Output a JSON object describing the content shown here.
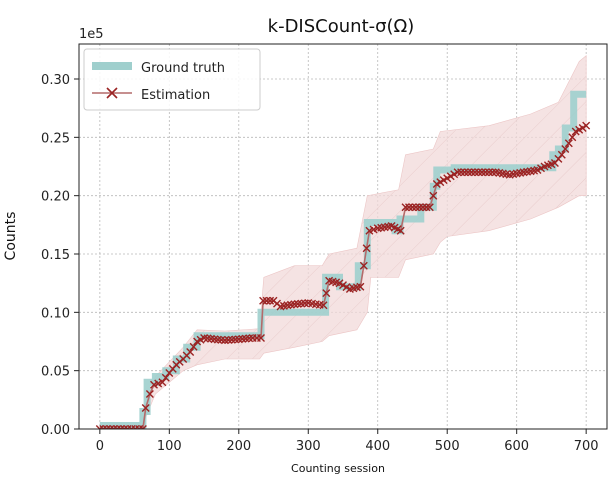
{
  "chart_data": {
    "type": "line",
    "title": "k-DISCount-σ(Ω)",
    "xlabel": "Counting session",
    "ylabel": "Counts",
    "y_multiplier_label": "1e5",
    "xlim": [
      -30,
      730
    ],
    "ylim": [
      0,
      0.33
    ],
    "x_ticks": [
      0,
      100,
      200,
      300,
      400,
      500,
      600,
      700
    ],
    "y_ticks": [
      0.0,
      0.05,
      0.1,
      0.15,
      0.2,
      0.25,
      0.3
    ],
    "y_tick_labels": [
      "0.00",
      "0.05",
      "0.10",
      "0.15",
      "0.20",
      "0.25",
      "0.30"
    ],
    "grid": true,
    "legend_position": "top-left",
    "series": [
      {
        "name": "Ground truth",
        "style": "step",
        "color": "#9fcfcd",
        "points": [
          [
            0,
            0.003
          ],
          [
            62,
            0.003
          ],
          [
            62,
            0.015
          ],
          [
            68,
            0.015
          ],
          [
            68,
            0.04
          ],
          [
            80,
            0.04
          ],
          [
            80,
            0.045
          ],
          [
            95,
            0.045
          ],
          [
            95,
            0.05
          ],
          [
            110,
            0.05
          ],
          [
            110,
            0.06
          ],
          [
            125,
            0.06
          ],
          [
            125,
            0.07
          ],
          [
            140,
            0.07
          ],
          [
            140,
            0.08
          ],
          [
            232,
            0.08
          ],
          [
            232,
            0.1
          ],
          [
            325,
            0.1
          ],
          [
            325,
            0.13
          ],
          [
            345,
            0.13
          ],
          [
            345,
            0.122
          ],
          [
            372,
            0.122
          ],
          [
            372,
            0.14
          ],
          [
            385,
            0.14
          ],
          [
            385,
            0.177
          ],
          [
            425,
            0.177
          ],
          [
            425,
            0.17
          ],
          [
            432,
            0.17
          ],
          [
            432,
            0.18
          ],
          [
            462,
            0.18
          ],
          [
            462,
            0.19
          ],
          [
            480,
            0.19
          ],
          [
            480,
            0.208
          ],
          [
            485,
            0.208
          ],
          [
            485,
            0.222
          ],
          [
            510,
            0.222
          ],
          [
            510,
            0.224
          ],
          [
            652,
            0.224
          ],
          [
            652,
            0.235
          ],
          [
            660,
            0.235
          ],
          [
            660,
            0.24
          ],
          [
            670,
            0.24
          ],
          [
            670,
            0.258
          ],
          [
            682,
            0.258
          ],
          [
            682,
            0.287
          ],
          [
            700,
            0.287
          ]
        ]
      },
      {
        "name": "Estimation",
        "style": "line-x-markers",
        "color": "#9b2323",
        "points": [
          [
            0,
            0.0
          ],
          [
            20,
            0.0
          ],
          [
            40,
            0.0
          ],
          [
            62,
            0.0
          ],
          [
            66,
            0.018
          ],
          [
            72,
            0.03
          ],
          [
            78,
            0.038
          ],
          [
            90,
            0.04
          ],
          [
            100,
            0.048
          ],
          [
            110,
            0.055
          ],
          [
            120,
            0.06
          ],
          [
            130,
            0.066
          ],
          [
            140,
            0.075
          ],
          [
            150,
            0.078
          ],
          [
            165,
            0.077
          ],
          [
            180,
            0.076
          ],
          [
            200,
            0.077
          ],
          [
            220,
            0.078
          ],
          [
            232,
            0.078
          ],
          [
            235,
            0.11
          ],
          [
            250,
            0.11
          ],
          [
            260,
            0.105
          ],
          [
            280,
            0.107
          ],
          [
            300,
            0.108
          ],
          [
            322,
            0.106
          ],
          [
            330,
            0.127
          ],
          [
            345,
            0.125
          ],
          [
            360,
            0.12
          ],
          [
            375,
            0.122
          ],
          [
            380,
            0.14
          ],
          [
            388,
            0.17
          ],
          [
            400,
            0.172
          ],
          [
            420,
            0.174
          ],
          [
            433,
            0.17
          ],
          [
            440,
            0.19
          ],
          [
            460,
            0.19
          ],
          [
            475,
            0.19
          ],
          [
            485,
            0.21
          ],
          [
            500,
            0.215
          ],
          [
            515,
            0.22
          ],
          [
            530,
            0.22
          ],
          [
            550,
            0.22
          ],
          [
            570,
            0.22
          ],
          [
            590,
            0.218
          ],
          [
            610,
            0.22
          ],
          [
            630,
            0.222
          ],
          [
            640,
            0.225
          ],
          [
            655,
            0.228
          ],
          [
            665,
            0.235
          ],
          [
            675,
            0.245
          ],
          [
            685,
            0.255
          ],
          [
            695,
            0.258
          ],
          [
            700,
            0.26
          ]
        ]
      }
    ],
    "uncertainty_band": {
      "color": "#f1d9d9",
      "upper": [
        [
          0,
          0.0
        ],
        [
          60,
          0.0
        ],
        [
          66,
          0.02
        ],
        [
          80,
          0.045
        ],
        [
          120,
          0.07
        ],
        [
          140,
          0.085
        ],
        [
          180,
          0.084
        ],
        [
          230,
          0.086
        ],
        [
          236,
          0.13
        ],
        [
          280,
          0.14
        ],
        [
          320,
          0.14
        ],
        [
          330,
          0.15
        ],
        [
          370,
          0.155
        ],
        [
          385,
          0.2
        ],
        [
          430,
          0.205
        ],
        [
          440,
          0.235
        ],
        [
          480,
          0.24
        ],
        [
          490,
          0.255
        ],
        [
          560,
          0.26
        ],
        [
          620,
          0.27
        ],
        [
          660,
          0.28
        ],
        [
          690,
          0.315
        ],
        [
          700,
          0.32
        ]
      ],
      "lower": [
        [
          700,
          0.2
        ],
        [
          690,
          0.2
        ],
        [
          660,
          0.19
        ],
        [
          620,
          0.18
        ],
        [
          560,
          0.17
        ],
        [
          500,
          0.165
        ],
        [
          490,
          0.16
        ],
        [
          480,
          0.15
        ],
        [
          440,
          0.145
        ],
        [
          430,
          0.13
        ],
        [
          390,
          0.13
        ],
        [
          385,
          0.1
        ],
        [
          370,
          0.085
        ],
        [
          330,
          0.08
        ],
        [
          320,
          0.075
        ],
        [
          280,
          0.07
        ],
        [
          236,
          0.065
        ],
        [
          230,
          0.06
        ],
        [
          180,
          0.06
        ],
        [
          140,
          0.055
        ],
        [
          120,
          0.05
        ],
        [
          80,
          0.03
        ],
        [
          66,
          0.01
        ],
        [
          60,
          0.0
        ],
        [
          0,
          0.0
        ]
      ]
    }
  }
}
